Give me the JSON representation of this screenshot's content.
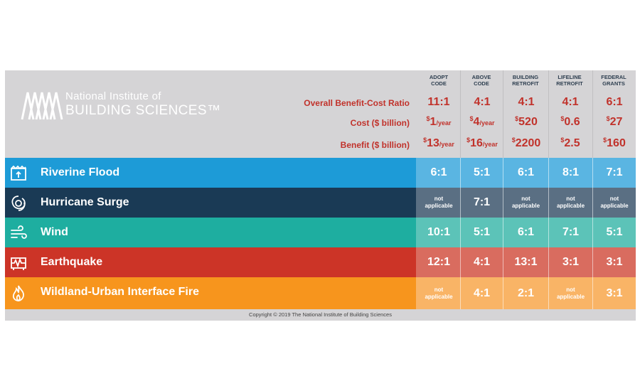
{
  "logo": {
    "line1": "National Institute of",
    "line2": "BUILDING SCIENCES™"
  },
  "columns": [
    {
      "line1": "ADOPT",
      "line2": "CODE"
    },
    {
      "line1": "ABOVE",
      "line2": "CODE"
    },
    {
      "line1": "BUILDING",
      "line2": "RETROFIT"
    },
    {
      "line1": "LIFELINE",
      "line2": "RETROFIT"
    },
    {
      "line1": "FEDERAL",
      "line2": "GRANTS"
    }
  ],
  "metrics": {
    "bcr_label": "Overall Benefit-Cost Ratio",
    "cost_label": "Cost ($ billion)",
    "benefit_label": "Benefit ($ billion)",
    "bcr": [
      "11:1",
      "4:1",
      "4:1",
      "4:1",
      "6:1"
    ],
    "cost": [
      {
        "sup": "$",
        "value": "1",
        "unit": "/year"
      },
      {
        "sup": "$",
        "value": "4",
        "unit": "/year"
      },
      {
        "sup": "$",
        "value": "520",
        "unit": ""
      },
      {
        "sup": "$",
        "value": "0.6",
        "unit": ""
      },
      {
        "sup": "$",
        "value": "27",
        "unit": ""
      }
    ],
    "benefit": [
      {
        "sup": "$",
        "value": "13",
        "unit": "/year"
      },
      {
        "sup": "$",
        "value": "16",
        "unit": "/year"
      },
      {
        "sup": "$",
        "value": "2200",
        "unit": ""
      },
      {
        "sup": "$",
        "value": "2.5",
        "unit": ""
      },
      {
        "sup": "$",
        "value": "160",
        "unit": ""
      }
    ]
  },
  "hazards": [
    {
      "label": "Riverine Flood",
      "icon": "flood-icon",
      "values": [
        "6:1",
        "5:1",
        "6:1",
        "8:1",
        "7:1"
      ]
    },
    {
      "label": "Hurricane Surge",
      "icon": "hurricane-icon",
      "values": [
        "not applicable",
        "7:1",
        "not applicable",
        "not applicable",
        "not applicable"
      ]
    },
    {
      "label": "Wind",
      "icon": "wind-icon",
      "values": [
        "10:1",
        "5:1",
        "6:1",
        "7:1",
        "5:1"
      ]
    },
    {
      "label": "Earthquake",
      "icon": "earthquake-icon",
      "values": [
        "12:1",
        "4:1",
        "13:1",
        "3:1",
        "3:1"
      ]
    },
    {
      "label": "Wildland-Urban Interface Fire",
      "icon": "fire-icon",
      "values": [
        "not applicable",
        "4:1",
        "2:1",
        "not applicable",
        "3:1"
      ]
    }
  ],
  "colors": {
    "flood": "#1d9bd7",
    "flood_cell": "#5ab5e2",
    "hurricane": "#1a3a55",
    "hurricane_cell": "#5a6f83",
    "wind": "#1eaea0",
    "wind_cell": "#5cc3b8",
    "earthquake": "#cc3427",
    "earthquake_cell": "#d96c5f",
    "fire": "#f7951d",
    "fire_cell": "#f9b466"
  },
  "footer": "Copyright © 2019 The National Institute of Building Sciences"
}
